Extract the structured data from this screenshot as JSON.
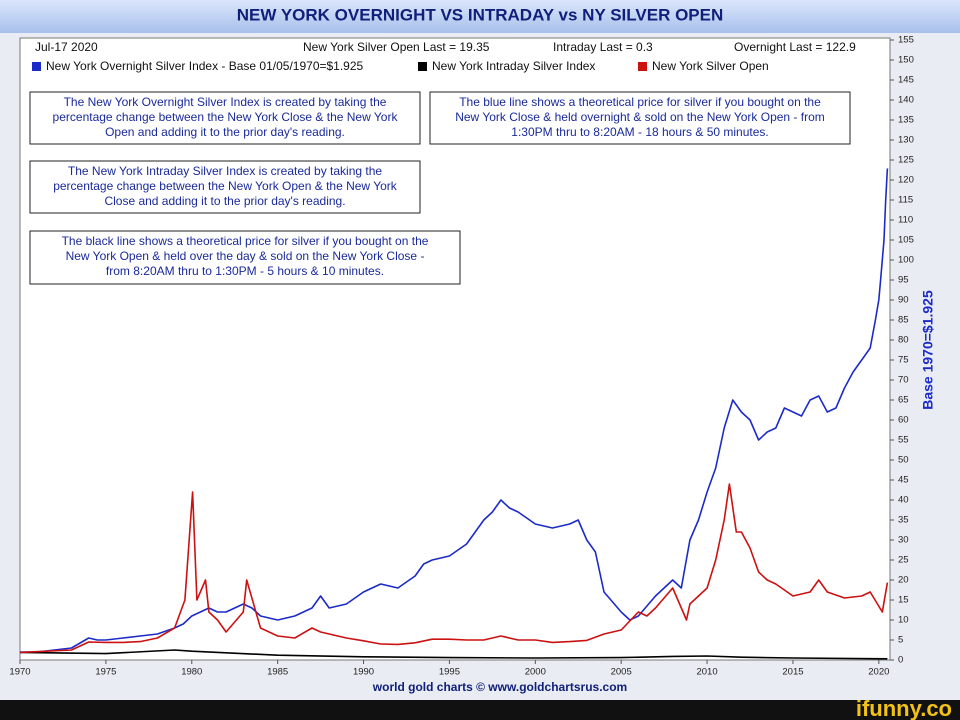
{
  "chart_data": {
    "type": "line",
    "title": "NEW YORK OVERNIGHT VS INTRADAY vs NY SILVER OPEN",
    "header_notes": [
      "Jul-17  2020",
      "New York Silver Open Last = 19.35",
      "Intraday Last = 0.3",
      "Overnight Last = 122.9"
    ],
    "annotations": [
      [
        "The New York Overnight Silver Index is created by taking the",
        "percentage change between the New York Close & the New York",
        "Open and adding it to the prior day's reading."
      ],
      [
        "The blue line shows a theoretical price for silver if you bought on the",
        "New York Close & held overnight & sold on the New York Open - from",
        "1:30PM thru to 8:20AM - 18 hours & 50 minutes."
      ],
      [
        "The New York Intraday Silver Index is created by taking the",
        "percentage change between the New York Open & the New York",
        "Close and adding it to the prior day's reading."
      ],
      [
        "The black line shows a theoretical price for silver if you bought on the",
        "New York Open & held over the day & sold on the New York Close -",
        "from 8:20AM thru to 1:30PM - 5 hours & 10 minutes."
      ]
    ],
    "y_label": "Base 1970=$1.925",
    "source": "world gold charts © www.goldchartsrus.com",
    "watermark": "ifunny.co",
    "xlim": [
      1970,
      2020.65
    ],
    "xticks": [
      1970,
      1975,
      1980,
      1985,
      1990,
      1995,
      2000,
      2005,
      2010,
      2015,
      2020
    ],
    "ylim": [
      0,
      155
    ],
    "yticks": [
      0,
      5,
      10,
      15,
      20,
      25,
      30,
      35,
      40,
      45,
      50,
      55,
      60,
      65,
      70,
      75,
      80,
      85,
      90,
      95,
      100,
      105,
      110,
      115,
      120,
      125,
      130,
      135,
      140,
      145,
      150,
      155
    ],
    "grid": false,
    "series": [
      {
        "name": "New York Overnight Silver Index - Base 01/05/1970=$1.925",
        "color": "#1c2bc8",
        "x": [
          1970,
          1971,
          1972,
          1973,
          1974,
          1974.5,
          1975,
          1976,
          1977,
          1978,
          1979,
          1979.5,
          1980,
          1980.5,
          1981,
          1981.5,
          1982,
          1983,
          1983.5,
          1984,
          1985,
          1986,
          1987,
          1987.5,
          1988,
          1989,
          1990,
          1990.5,
          1991,
          1992,
          1993,
          1993.5,
          1994,
          1995,
          1996,
          1997,
          1997.5,
          1998,
          1998.5,
          1999,
          2000,
          2001,
          2002,
          2002.5,
          2003,
          2003.5,
          2004,
          2005,
          2005.5,
          2006,
          2007,
          2008,
          2008.5,
          2009,
          2009.5,
          2010,
          2010.5,
          2011,
          2011.5,
          2012,
          2012.5,
          2013,
          2013.5,
          2014,
          2014.5,
          2015,
          2015.5,
          2016,
          2016.5,
          2017,
          2017.5,
          2018,
          2018.5,
          2019,
          2019.5,
          2019.8,
          2020,
          2020.1,
          2020.2,
          2020.3,
          2020.4,
          2020.5
        ],
        "values": [
          2,
          2,
          2.5,
          3,
          5.5,
          5,
          5,
          5.5,
          6,
          6.5,
          8,
          9,
          11,
          12,
          13,
          12,
          12,
          14,
          13,
          11,
          10,
          11,
          13,
          16,
          13,
          14,
          17,
          18,
          19,
          18,
          21,
          24,
          25,
          26,
          29,
          35,
          37,
          40,
          38,
          37,
          34,
          33,
          34,
          35,
          30,
          27,
          17,
          12,
          10,
          11,
          16,
          20,
          18,
          30,
          35,
          42,
          48,
          58,
          65,
          62,
          60,
          55,
          57,
          58,
          63,
          62,
          61,
          65,
          66,
          62,
          63,
          68,
          72,
          75,
          78,
          85,
          90,
          95,
          100,
          105,
          115,
          122.9
        ]
      },
      {
        "name": "New York Intraday Silver Index",
        "color": "#000000",
        "x": [
          1970,
          1975,
          1979,
          1980,
          1985,
          1990,
          1995,
          2000,
          2005,
          2008,
          2010,
          2012,
          2015,
          2020.5
        ],
        "values": [
          1.9,
          1.6,
          2.5,
          2.2,
          1.2,
          0.8,
          0.6,
          0.5,
          0.6,
          0.9,
          1,
          0.7,
          0.5,
          0.3
        ]
      },
      {
        "name": "New York Silver Open",
        "color": "#cc1111",
        "x": [
          1970,
          1973,
          1974,
          1975,
          1976,
          1977,
          1978,
          1979,
          1979.6,
          1980.05,
          1980.3,
          1980.8,
          1981,
          1981.5,
          1982,
          1983,
          1983.2,
          1984,
          1985,
          1986,
          1987,
          1987.5,
          1988,
          1989,
          1990,
          1991,
          1992,
          1993,
          1994,
          1995,
          1996,
          1997,
          1998,
          1999,
          2000,
          2001,
          2002,
          2003,
          2004,
          2005,
          2006,
          2006.5,
          2007,
          2008,
          2008.8,
          2009,
          2010,
          2010.5,
          2011,
          2011.3,
          2011.7,
          2012,
          2012.5,
          2013,
          2013.5,
          2014,
          2015,
          2016,
          2016.5,
          2017,
          2018,
          2019,
          2019.5,
          2020.2,
          2020.5
        ],
        "values": [
          1.9,
          2.5,
          4.5,
          4.4,
          4.4,
          4.6,
          5.5,
          8,
          15,
          42,
          15,
          20,
          12,
          10,
          7,
          12,
          20,
          8,
          6,
          5.5,
          8,
          7,
          6.5,
          5.5,
          4.8,
          4,
          3.9,
          4.3,
          5.2,
          5.2,
          5,
          5,
          6,
          5,
          5,
          4.4,
          4.6,
          4.9,
          6.5,
          7.5,
          12,
          11,
          13,
          18,
          10,
          14,
          18,
          25,
          35,
          44,
          32,
          32,
          28,
          22,
          20,
          19,
          16,
          17,
          20,
          17,
          15.5,
          16,
          17,
          12,
          19.35
        ]
      }
    ]
  }
}
